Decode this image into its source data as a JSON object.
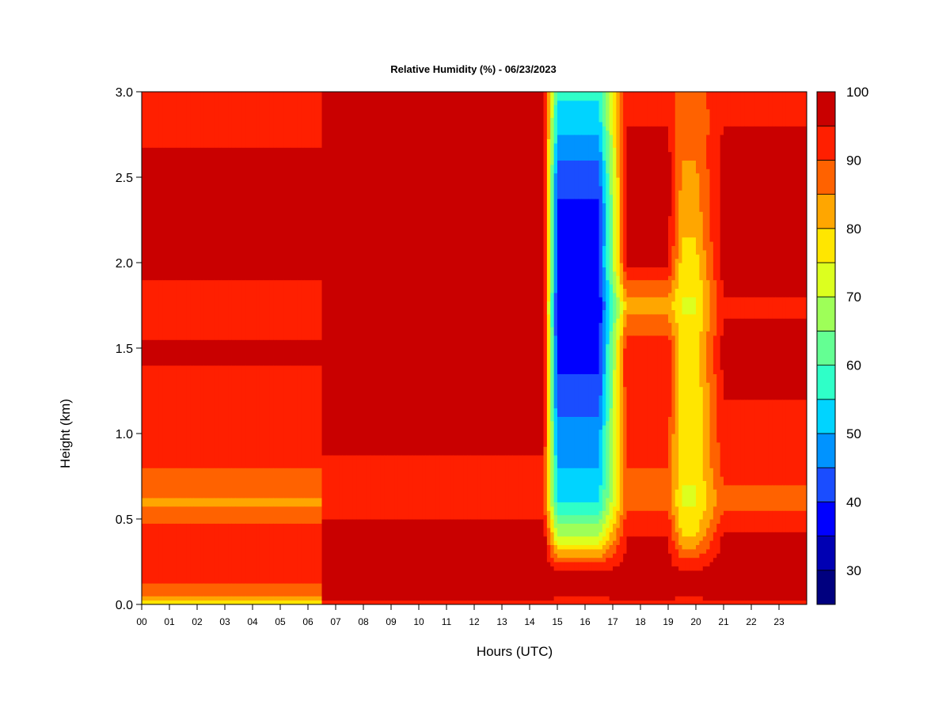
{
  "chart_data": {
    "type": "heatmap",
    "title": "Relative Humidity (%) - 06/23/2023",
    "xlabel": "Hours (UTC)",
    "ylabel": "Height (km)",
    "xlim": [
      0,
      24
    ],
    "ylim": [
      0.0,
      3.0
    ],
    "x_ticks": [
      "00",
      "01",
      "02",
      "03",
      "04",
      "05",
      "06",
      "07",
      "08",
      "09",
      "10",
      "11",
      "12",
      "13",
      "14",
      "15",
      "16",
      "17",
      "18",
      "19",
      "20",
      "21",
      "22",
      "23"
    ],
    "y_ticks": [
      "0.0",
      "0.5",
      "1.0",
      "1.5",
      "2.0",
      "2.5",
      "3.0"
    ],
    "colorbar": {
      "levels": [
        25,
        30,
        35,
        40,
        45,
        50,
        55,
        60,
        65,
        70,
        75,
        80,
        85,
        90,
        95,
        100
      ],
      "colors": [
        "#00007f",
        "#0000b3",
        "#0000ff",
        "#1a4dff",
        "#0093ff",
        "#00d4ff",
        "#2fffc8",
        "#64ff93",
        "#9eff58",
        "#dcff1f",
        "#ffe600",
        "#ffa600",
        "#ff6200",
        "#ff1f00",
        "#c90000",
        "#7f0000"
      ],
      "tick_labels": [
        "30",
        "40",
        "50",
        "60",
        "70",
        "80",
        "90",
        "100"
      ],
      "tick_values": [
        30,
        40,
        50,
        60,
        70,
        80,
        90,
        100
      ]
    },
    "grid": false,
    "summary_rh": {
      "heights_km": [
        0.0,
        0.05,
        0.2,
        0.4,
        0.6,
        0.8,
        1.0,
        1.2,
        1.5,
        1.75,
        2.0,
        2.3,
        2.6,
        2.8,
        3.0
      ],
      "segments": [
        {
          "hours": [
            0.0,
            6.5
          ],
          "rh": [
            75,
            88,
            92,
            94,
            84,
            90,
            92,
            93,
            96,
            90,
            98,
            98,
            96,
            93,
            93
          ]
        },
        {
          "hours": [
            6.5,
            14.5
          ],
          "rh": [
            92,
            98,
            99,
            99,
            91,
            94,
            97,
            98,
            99,
            98,
            99,
            99,
            99,
            98,
            98
          ]
        },
        {
          "hours": [
            15.0,
            16.5
          ],
          "rh": [
            90,
            96,
            95,
            70,
            55,
            50,
            48,
            42,
            38,
            36,
            40,
            38,
            45,
            52,
            56
          ]
        },
        {
          "hours": [
            17.5,
            19.0
          ],
          "rh": [
            92,
            97,
            97,
            95,
            88,
            90,
            91,
            93,
            94,
            82,
            96,
            97,
            97,
            95,
            93
          ]
        },
        {
          "hours": [
            19.5,
            20.0
          ],
          "rh": [
            90,
            96,
            95,
            80,
            74,
            76,
            75,
            76,
            78,
            74,
            78,
            82,
            85,
            86,
            87
          ]
        },
        {
          "hours": [
            21.0,
            24.0
          ],
          "rh": [
            92,
            98,
            98,
            96,
            88,
            92,
            94,
            95,
            97,
            94,
            98,
            98,
            97,
            95,
            94
          ]
        }
      ]
    }
  }
}
